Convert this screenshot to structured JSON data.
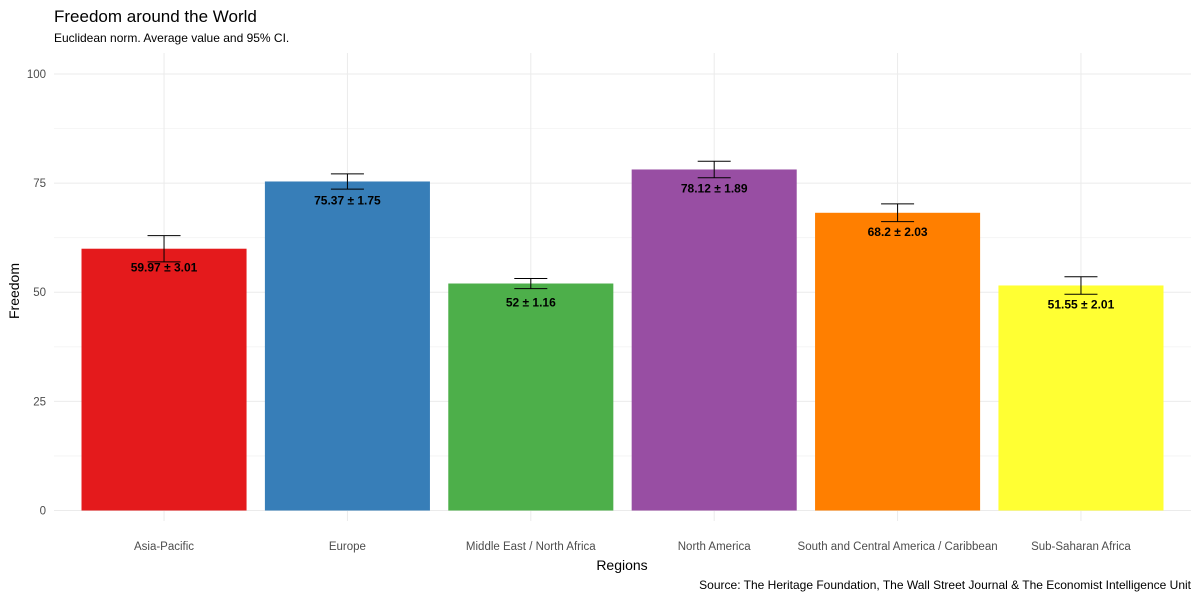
{
  "chart_data": {
    "type": "bar",
    "title": "Freedom around the World",
    "subtitle": "Euclidean norm. Average value and 95% CI.",
    "xlabel": "Regions",
    "ylabel": "Freedom",
    "caption": "Source: The Heritage Foundation, The Wall Street Journal & The Economist Intelligence Unit",
    "ylim": [
      0,
      100
    ],
    "yticks": [
      0,
      25,
      50,
      75,
      100
    ],
    "grid": true,
    "legend": "none",
    "categories": [
      "Asia-Pacific",
      "Europe",
      "Middle East / North Africa",
      "North America",
      "South and Central America / Caribbean",
      "Sub-Saharan Africa"
    ],
    "values": [
      59.97,
      75.37,
      52,
      78.12,
      68.2,
      51.55
    ],
    "errors": [
      3.01,
      1.75,
      1.16,
      1.89,
      2.03,
      2.01
    ],
    "labels": [
      "59.97 ± 3.01",
      "75.37 ± 1.75",
      "52 ± 1.16",
      "78.12 ± 1.89",
      "68.2 ± 2.03",
      "51.55 ± 2.01"
    ],
    "colors": [
      "#E41A1C",
      "#377EB8",
      "#4DAF4A",
      "#984EA3",
      "#FF7F00",
      "#FFFF33"
    ]
  }
}
